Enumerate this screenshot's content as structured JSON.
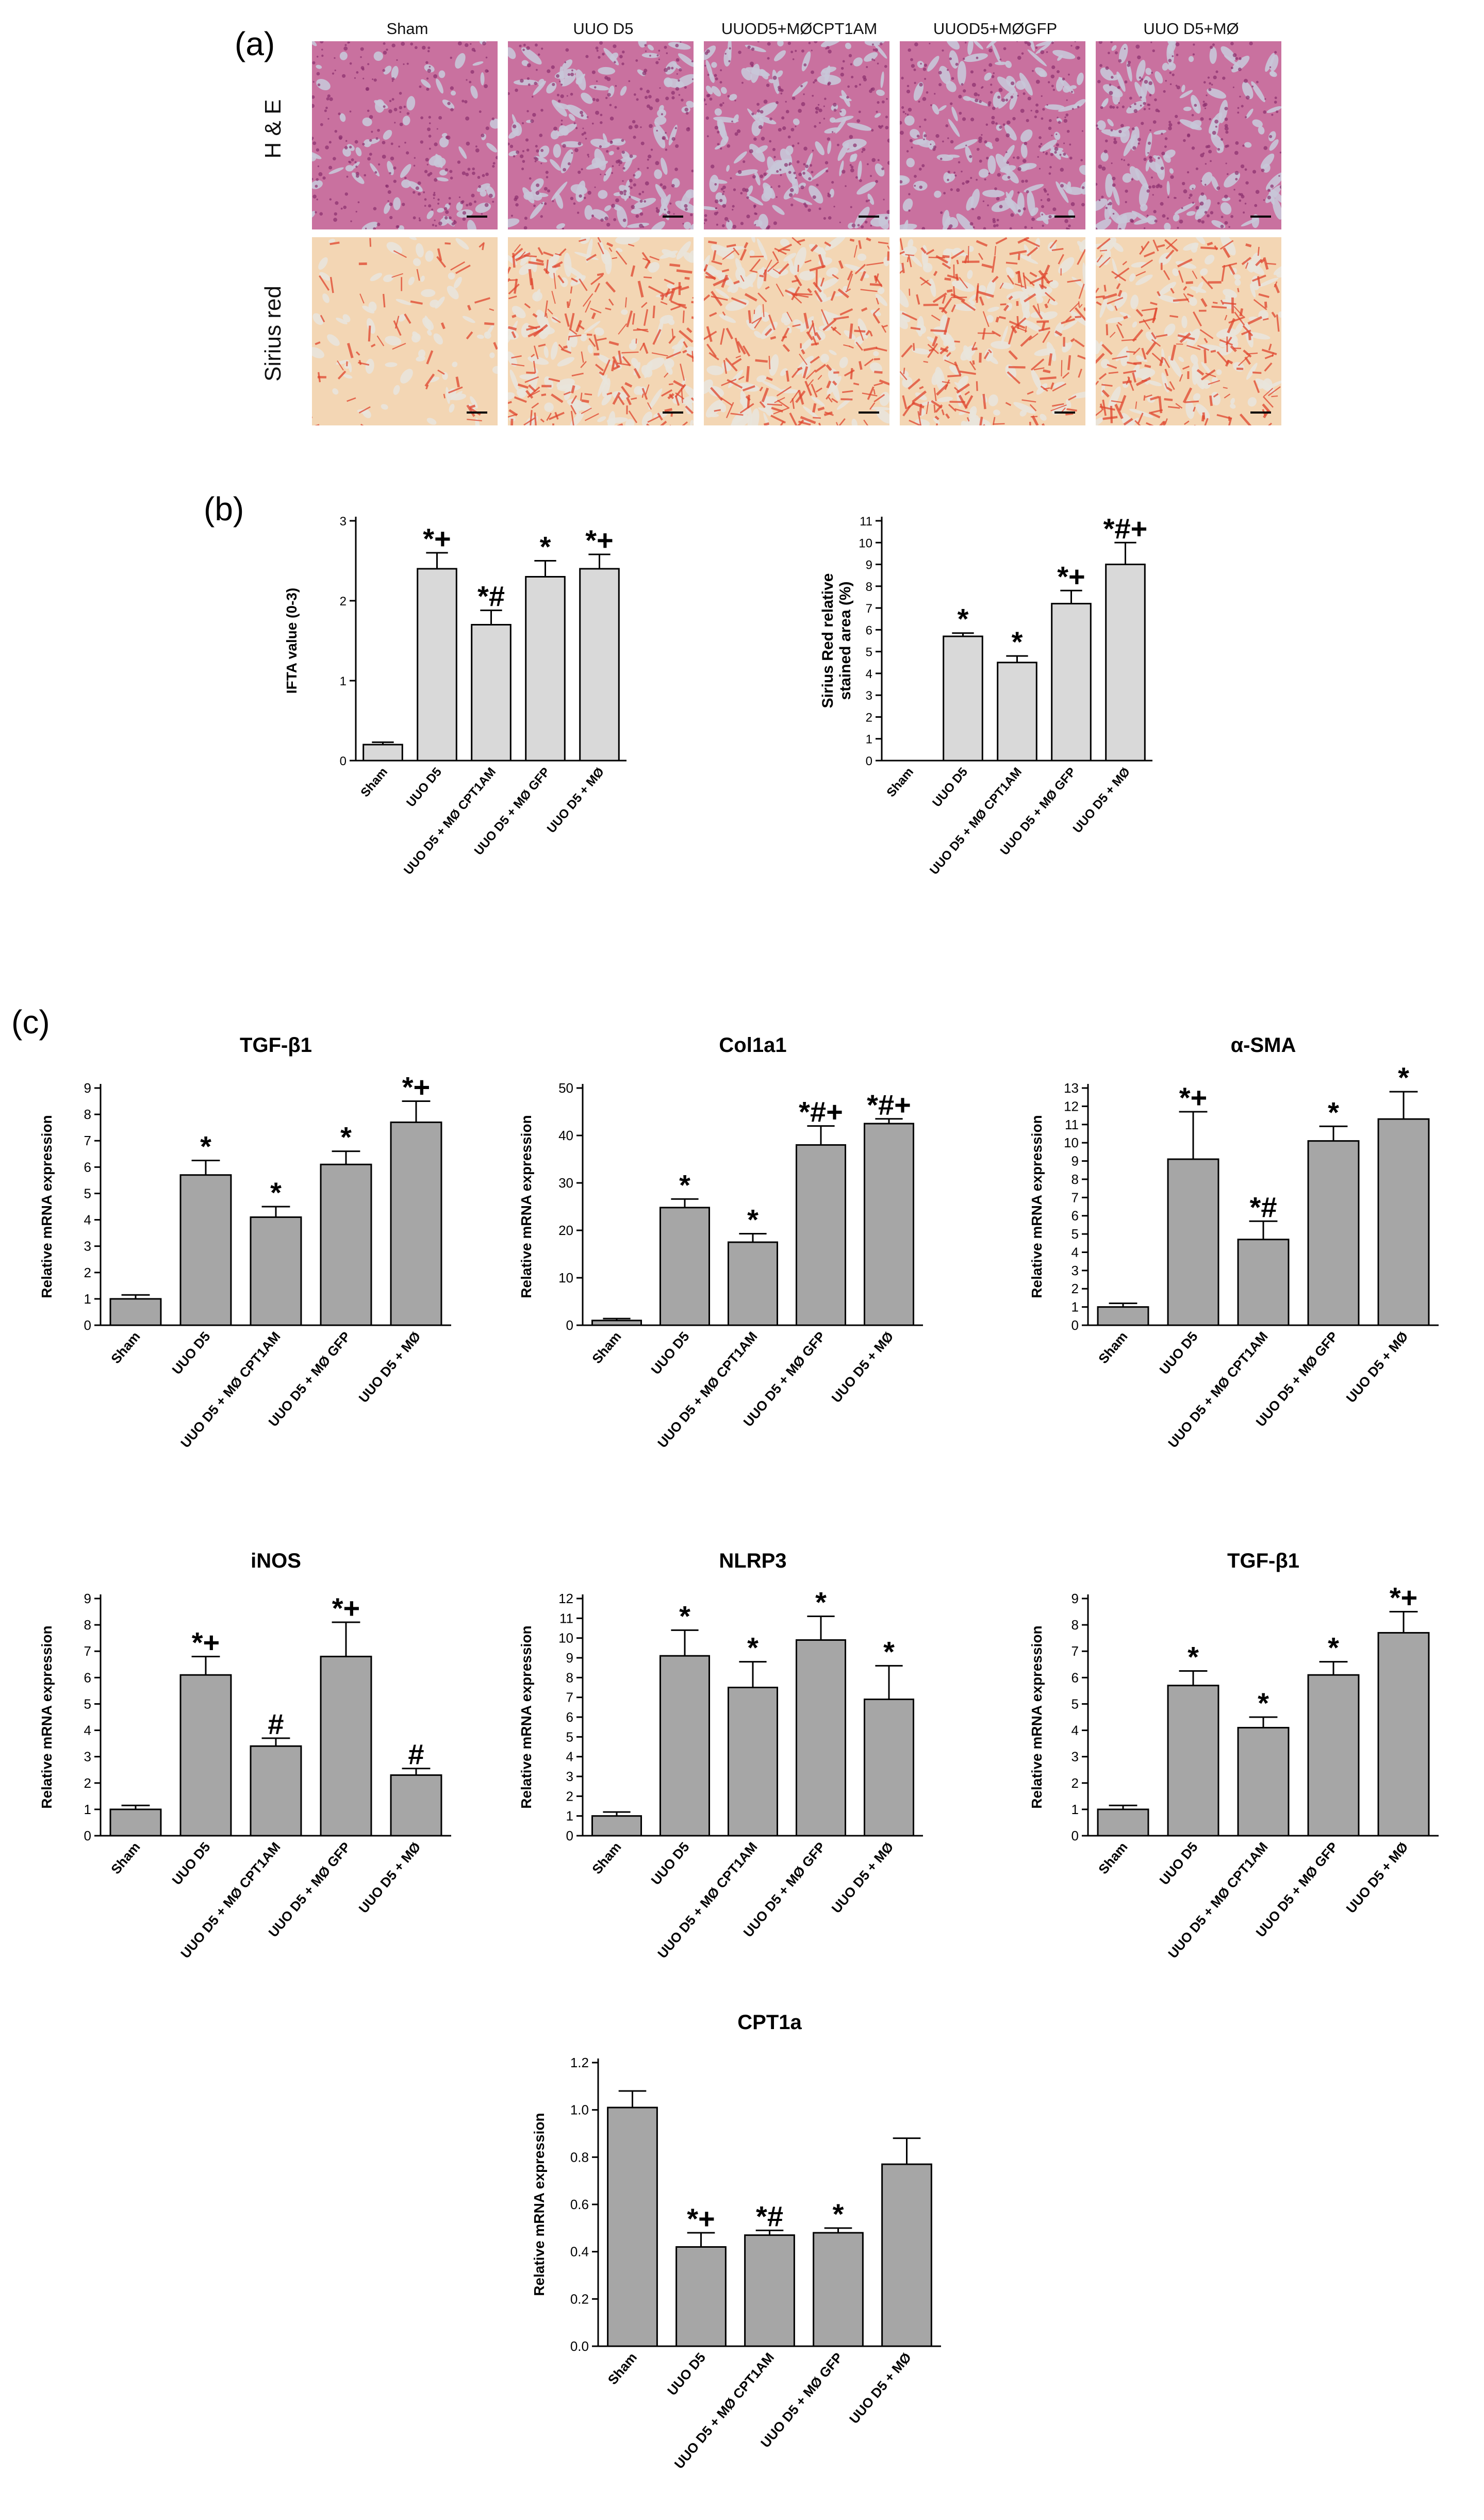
{
  "panel_letters": {
    "a": "(a)",
    "b": "(b)",
    "c": "(c)"
  },
  "micrographs": {
    "columns": [
      "Sham",
      "UUO D5",
      "UUOD5+MØCPT1AM",
      "UUOD5+MØGFP",
      "UUO D5+MØ"
    ],
    "rows": [
      "H & E",
      "Sirius red"
    ],
    "colors": {
      "he_base": "#c9719f",
      "he_dark": "#8a2f6e",
      "he_lumen": "#c8c6d8",
      "sr_base": "#f3d6b4",
      "sr_red": "#e0452e",
      "sr_lumen": "#e9e4dc"
    }
  },
  "chart_data": [
    {
      "id": "ifta",
      "type": "bar",
      "panel": "b",
      "title": "",
      "ylabel": "IFTA value (0-3)",
      "categories": [
        "Sham",
        "UUO D5",
        "UUO D5 + MØ CPT1AM",
        "UUO D5 + MØ GFP",
        "UUO D5 + MØ"
      ],
      "values": [
        0.2,
        2.4,
        1.7,
        2.3,
        2.4
      ],
      "errors": [
        0.03,
        0.2,
        0.18,
        0.2,
        0.18
      ],
      "annotations": [
        "",
        "*+",
        "*#",
        "*",
        "*+"
      ],
      "yticks": [
        0,
        1,
        2,
        3
      ],
      "ylim": [
        0,
        3
      ],
      "bar_color": "#d9d9d9"
    },
    {
      "id": "sirius",
      "type": "bar",
      "panel": "b",
      "title": "",
      "ylabel": "Sirius Red relative stained area (%)",
      "ylabel_lines": [
        "Sirius Red relative",
        "stained area (%)"
      ],
      "categories": [
        "Sham",
        "UUO D5",
        "UUO D5 + MØ CPT1AM",
        "UUO D5 + MØ GFP",
        "UUO D5 + MØ"
      ],
      "values": [
        0,
        5.7,
        4.5,
        7.2,
        9.0
      ],
      "errors": [
        0,
        0.15,
        0.3,
        0.6,
        1.0
      ],
      "annotations": [
        "",
        "*",
        "*",
        "*+",
        "*#+"
      ],
      "yticks": [
        0,
        1,
        2,
        3,
        4,
        5,
        6,
        7,
        8,
        9,
        10,
        11
      ],
      "ylim": [
        0,
        11
      ],
      "bar_color": "#d9d9d9"
    },
    {
      "id": "tgfb1-a",
      "type": "bar",
      "panel": "c",
      "title": "TGF-β1",
      "ylabel": "Relative mRNA expression",
      "categories": [
        "Sham",
        "UUO D5",
        "UUO D5 + MØ CPT1AM",
        "UUO D5 + MØ GFP",
        "UUO D5 + MØ"
      ],
      "values": [
        1.0,
        5.7,
        4.1,
        6.1,
        7.7
      ],
      "errors": [
        0.15,
        0.55,
        0.4,
        0.5,
        0.8
      ],
      "annotations": [
        "",
        "*",
        "*",
        "*",
        "*+"
      ],
      "yticks": [
        0,
        1,
        2,
        3,
        4,
        5,
        6,
        7,
        8,
        9
      ],
      "ylim": [
        0,
        9
      ],
      "bar_color": "#a6a6a6"
    },
    {
      "id": "col1a1",
      "type": "bar",
      "panel": "c",
      "title": "Col1a1",
      "ylabel": "Relative mRNA expression",
      "categories": [
        "Sham",
        "UUO D5",
        "UUO D5 + MØ CPT1AM",
        "UUO D5 + MØ GFP",
        "UUO D5 + MØ"
      ],
      "values": [
        1.0,
        24.8,
        17.5,
        38.0,
        42.5
      ],
      "errors": [
        0.4,
        1.8,
        1.8,
        4.0,
        1.0
      ],
      "annotations": [
        "",
        "*",
        "*",
        "*#+",
        "*#+"
      ],
      "yticks": [
        0,
        10,
        20,
        30,
        40,
        50
      ],
      "ylim": [
        0,
        50
      ],
      "bar_color": "#a6a6a6"
    },
    {
      "id": "asma",
      "type": "bar",
      "panel": "c",
      "title": "α-SMA",
      "ylabel": "Relative mRNA expression",
      "categories": [
        "Sham",
        "UUO D5",
        "UUO D5 + MØ CPT1AM",
        "UUO D5 + MØ GFP",
        "UUO D5 + MØ"
      ],
      "values": [
        1.0,
        9.1,
        4.7,
        10.1,
        11.3
      ],
      "errors": [
        0.2,
        2.6,
        1.0,
        0.8,
        1.5
      ],
      "annotations": [
        "",
        "*+",
        "*#",
        "*",
        "*"
      ],
      "yticks": [
        0,
        1,
        2,
        3,
        4,
        5,
        6,
        7,
        8,
        9,
        10,
        11,
        12,
        13
      ],
      "ylim": [
        0,
        13
      ],
      "bar_color": "#a6a6a6"
    },
    {
      "id": "inos",
      "type": "bar",
      "panel": "c",
      "title": "iNOS",
      "ylabel": "Relative mRNA expression",
      "categories": [
        "Sham",
        "UUO D5",
        "UUO D5 + MØ CPT1AM",
        "UUO D5 + MØ GFP",
        "UUO D5 + MØ"
      ],
      "values": [
        1.0,
        6.1,
        3.4,
        6.8,
        2.3
      ],
      "errors": [
        0.15,
        0.7,
        0.3,
        1.3,
        0.25
      ],
      "annotations": [
        "",
        "*+",
        "#",
        "*+",
        "#"
      ],
      "yticks": [
        0,
        1,
        2,
        3,
        4,
        5,
        6,
        7,
        8,
        9
      ],
      "ylim": [
        0,
        9
      ],
      "bar_color": "#a6a6a6"
    },
    {
      "id": "nlrp3",
      "type": "bar",
      "panel": "c",
      "title": "NLRP3",
      "ylabel": "Relative mRNA expression",
      "categories": [
        "Sham",
        "UUO D5",
        "UUO D5 + MØ CPT1AM",
        "UUO D5 + MØ GFP",
        "UUO D5 + MØ"
      ],
      "values": [
        1.0,
        9.1,
        7.5,
        9.9,
        6.9
      ],
      "errors": [
        0.2,
        1.3,
        1.3,
        1.2,
        1.7
      ],
      "annotations": [
        "",
        "*",
        "*",
        "*",
        "*"
      ],
      "yticks": [
        0,
        1,
        2,
        3,
        4,
        5,
        6,
        7,
        8,
        9,
        10,
        11,
        12
      ],
      "ylim": [
        0,
        12
      ],
      "bar_color": "#a6a6a6"
    },
    {
      "id": "tgfb1-b",
      "type": "bar",
      "panel": "c",
      "title": "TGF-β1",
      "ylabel": "Relative mRNA expression",
      "categories": [
        "Sham",
        "UUO D5",
        "UUO D5 + MØ CPT1AM",
        "UUO D5 + MØ GFP",
        "UUO D5 + MØ"
      ],
      "values": [
        1.0,
        5.7,
        4.1,
        6.1,
        7.7
      ],
      "errors": [
        0.15,
        0.55,
        0.4,
        0.5,
        0.8
      ],
      "annotations": [
        "",
        "*",
        "*",
        "*",
        "*+"
      ],
      "yticks": [
        0,
        1,
        2,
        3,
        4,
        5,
        6,
        7,
        8,
        9
      ],
      "ylim": [
        0,
        9
      ],
      "bar_color": "#a6a6a6"
    },
    {
      "id": "cpt1a",
      "type": "bar",
      "panel": "c",
      "title": "CPT1a",
      "ylabel": "Relative mRNA expression",
      "categories": [
        "Sham",
        "UUO D5",
        "UUO D5 + MØ CPT1AM",
        "UUO D5 + MØ GFP",
        "UUO D5 + MØ"
      ],
      "values": [
        1.01,
        0.42,
        0.47,
        0.48,
        0.77
      ],
      "errors": [
        0.07,
        0.06,
        0.02,
        0.02,
        0.11
      ],
      "annotations": [
        "",
        "*+",
        "*#",
        "*",
        ""
      ],
      "yticks": [
        "0.0",
        "0.2",
        "0.4",
        "0.6",
        "0.8",
        "1.0",
        "1.2"
      ],
      "ylim": [
        0,
        1.2
      ],
      "bar_color": "#a6a6a6"
    }
  ]
}
